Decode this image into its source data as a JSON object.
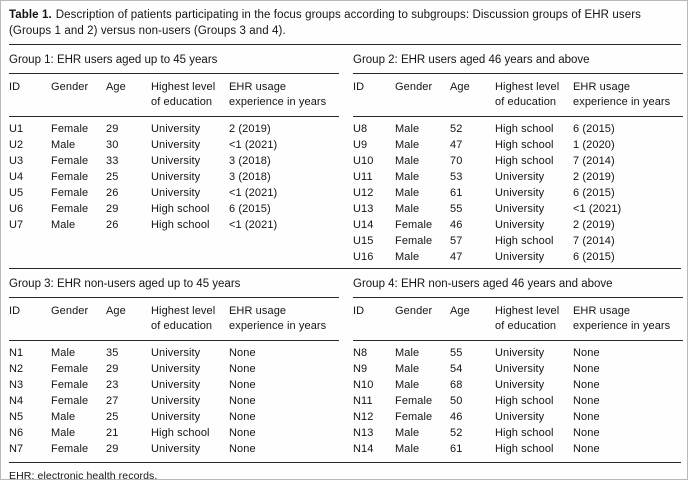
{
  "table": {
    "caption_label": "Table 1.",
    "caption_text": "Description of patients participating in the focus groups according to subgroups: Discussion groups of EHR users (Groups 1 and 2) versus non-users (Groups 3 and 4).",
    "footnote": "EHR: electronic health records.",
    "column_headers": [
      "ID",
      "Gender",
      "Age",
      "Highest level of education",
      "EHR usage experience in years"
    ],
    "groups": [
      {
        "title": "Group 1: EHR users aged up to 45 years",
        "rows": [
          [
            "U1",
            "Female",
            "29",
            "University",
            "2 (2019)"
          ],
          [
            "U2",
            "Male",
            "30",
            "University",
            "<1 (2021)"
          ],
          [
            "U3",
            "Female",
            "33",
            "University",
            "3 (2018)"
          ],
          [
            "U4",
            "Female",
            "25",
            "University",
            "3 (2018)"
          ],
          [
            "U5",
            "Female",
            "26",
            "University",
            "<1 (2021)"
          ],
          [
            "U6",
            "Female",
            "29",
            "High school",
            "6 (2015)"
          ],
          [
            "U7",
            "Male",
            "26",
            "High school",
            "<1 (2021)"
          ]
        ]
      },
      {
        "title": "Group 2: EHR users aged 46 years and above",
        "rows": [
          [
            "U8",
            "Male",
            "52",
            "High school",
            "6 (2015)"
          ],
          [
            "U9",
            "Male",
            "47",
            "High school",
            "1 (2020)"
          ],
          [
            "U10",
            "Male",
            "70",
            "High school",
            "7 (2014)"
          ],
          [
            "U11",
            "Male",
            "53",
            "University",
            "2 (2019)"
          ],
          [
            "U12",
            "Male",
            "61",
            "University",
            "6 (2015)"
          ],
          [
            "U13",
            "Male",
            "55",
            "University",
            "<1 (2021)"
          ],
          [
            "U14",
            "Female",
            "46",
            "University",
            "2 (2019)"
          ],
          [
            "U15",
            "Female",
            "57",
            "High school",
            "7 (2014)"
          ],
          [
            "U16",
            "Male",
            "47",
            "University",
            "6 (2015)"
          ]
        ]
      },
      {
        "title": "Group 3: EHR non-users aged up to 45 years",
        "rows": [
          [
            "N1",
            "Male",
            "35",
            "University",
            "None"
          ],
          [
            "N2",
            "Female",
            "29",
            "University",
            "None"
          ],
          [
            "N3",
            "Female",
            "23",
            "University",
            "None"
          ],
          [
            "N4",
            "Female",
            "27",
            "University",
            "None"
          ],
          [
            "N5",
            "Male",
            "25",
            "University",
            "None"
          ],
          [
            "N6",
            "Male",
            "21",
            "High school",
            "None"
          ],
          [
            "N7",
            "Female",
            "29",
            "University",
            "None"
          ]
        ]
      },
      {
        "title": "Group 4: EHR non-users aged 46 years and above",
        "rows": [
          [
            "N8",
            "Male",
            "55",
            "University",
            "None"
          ],
          [
            "N9",
            "Male",
            "54",
            "University",
            "None"
          ],
          [
            "N10",
            "Male",
            "68",
            "University",
            "None"
          ],
          [
            "N11",
            "Female",
            "50",
            "High school",
            "None"
          ],
          [
            "N12",
            "Female",
            "46",
            "University",
            "None"
          ],
          [
            "N13",
            "Male",
            "52",
            "High school",
            "None"
          ],
          [
            "N14",
            "Male",
            "61",
            "High school",
            "None"
          ]
        ]
      }
    ]
  }
}
